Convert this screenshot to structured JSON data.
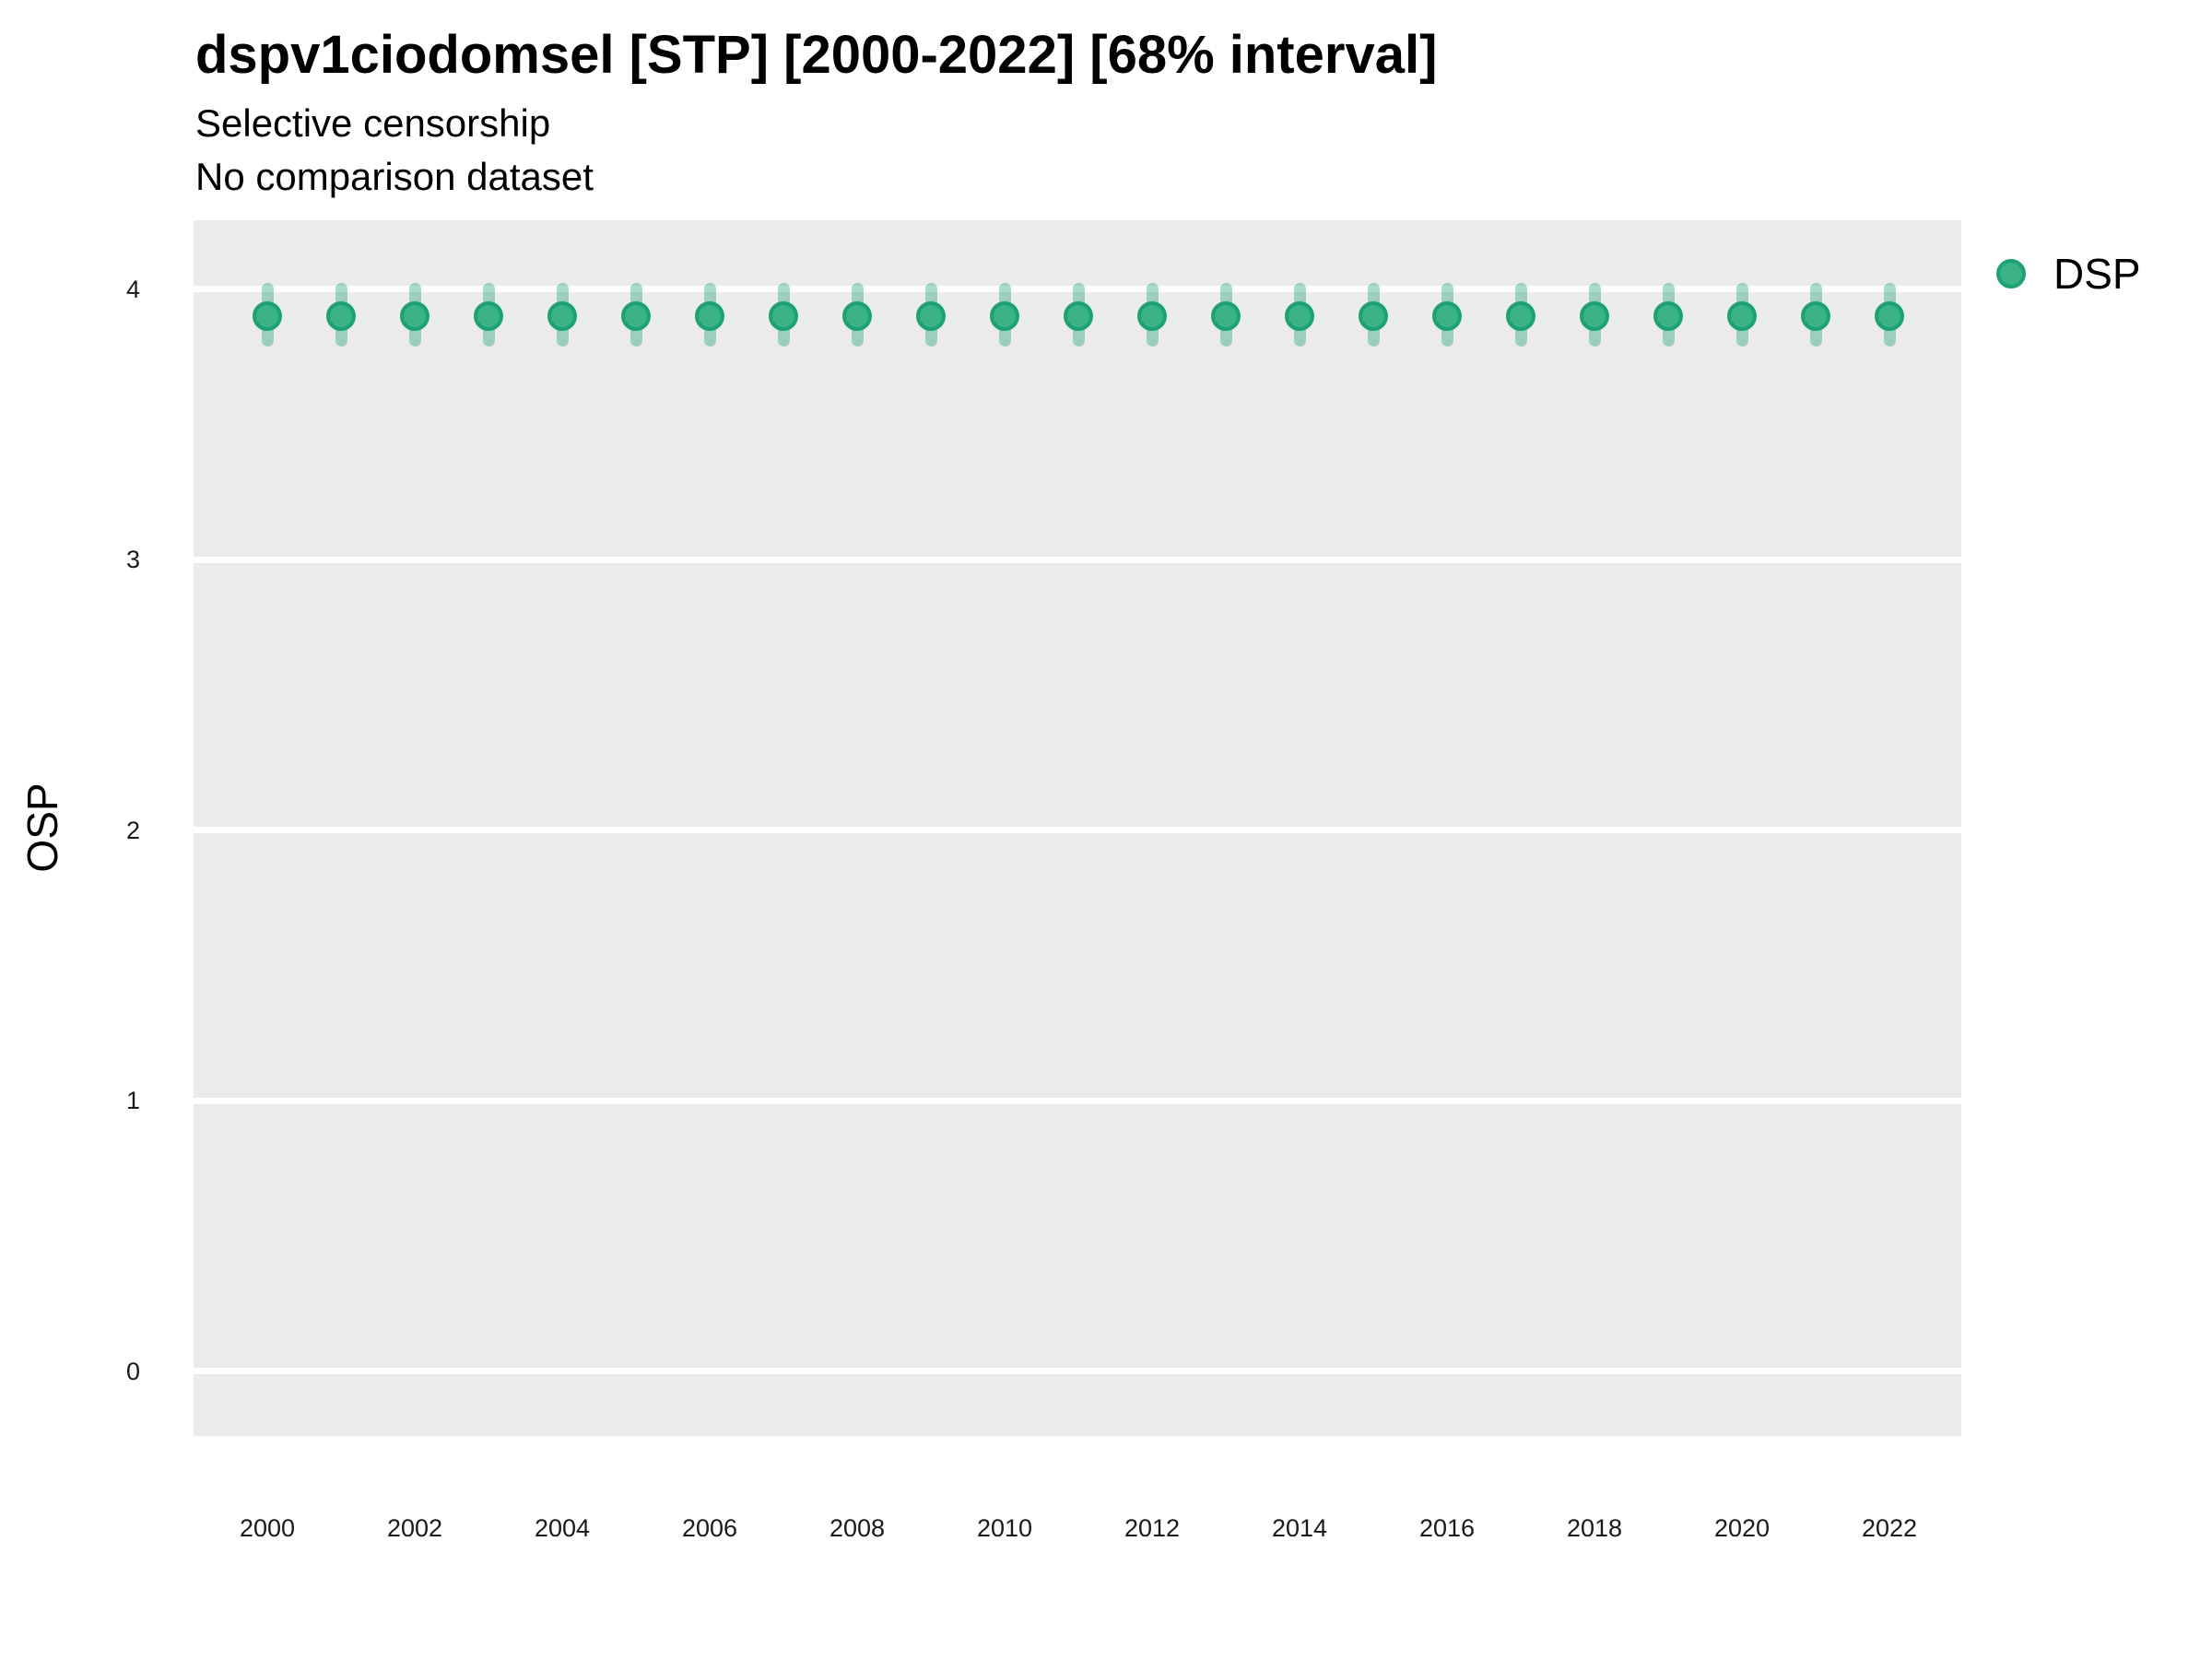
{
  "title": "dspv1ciodomsel [STP] [2000-2022] [68% interval]",
  "subtitle_line1": "Selective censorship",
  "subtitle_line2": "No comparison dataset",
  "y_axis": {
    "label": "OSP",
    "tick_values": [
      0,
      1,
      2,
      3,
      4
    ],
    "tick_labels": [
      "0",
      "1",
      "2",
      "3",
      "4"
    ]
  },
  "x_axis": {
    "tick_values": [
      2000,
      2002,
      2004,
      2006,
      2008,
      2010,
      2012,
      2014,
      2016,
      2018,
      2020,
      2022
    ],
    "tick_labels": [
      "2000",
      "2002",
      "2004",
      "2006",
      "2008",
      "2010",
      "2012",
      "2014",
      "2016",
      "2018",
      "2020",
      "2022"
    ]
  },
  "legend": {
    "label": "DSP",
    "position": "right"
  },
  "colors": {
    "panel_background": "#ebebeb",
    "gridline": "#ffffff",
    "point_fill": "#3ab285",
    "point_stroke": "#1da273",
    "interval_bar": "rgba(46, 169, 123, 0.42)",
    "text": "#000000",
    "tick_text": "#1a1a1a"
  },
  "chart_data": {
    "type": "scatter",
    "subtype": "pointrange",
    "title": "dspv1ciodomsel [STP] [2000-2022] [68% interval]",
    "subtitle": [
      "Selective censorship",
      "No comparison dataset"
    ],
    "xlabel": "",
    "ylabel": "OSP",
    "ylim": [
      -0.25,
      4.25
    ],
    "xlim": [
      1999,
      2023
    ],
    "grid": "horizontal-major-only",
    "legend_position": "right",
    "interval_label": "68% interval",
    "x": [
      2000,
      2001,
      2002,
      2003,
      2004,
      2005,
      2006,
      2007,
      2008,
      2009,
      2010,
      2011,
      2012,
      2013,
      2014,
      2015,
      2016,
      2017,
      2018,
      2019,
      2020,
      2021,
      2022
    ],
    "series": [
      {
        "name": "DSP",
        "values": [
          3.9,
          3.9,
          3.9,
          3.9,
          3.9,
          3.9,
          3.9,
          3.9,
          3.9,
          3.9,
          3.9,
          3.9,
          3.9,
          3.9,
          3.9,
          3.9,
          3.9,
          3.9,
          3.9,
          3.9,
          3.9,
          3.9,
          3.9
        ],
        "interval_low": [
          3.81,
          3.81,
          3.81,
          3.81,
          3.81,
          3.81,
          3.81,
          3.81,
          3.81,
          3.81,
          3.81,
          3.81,
          3.81,
          3.81,
          3.81,
          3.81,
          3.81,
          3.81,
          3.81,
          3.81,
          3.81,
          3.81,
          3.81
        ],
        "interval_high": [
          4.0,
          4.0,
          4.0,
          4.0,
          4.0,
          4.0,
          4.0,
          4.0,
          4.0,
          4.0,
          4.0,
          4.0,
          4.0,
          4.0,
          4.0,
          4.0,
          4.0,
          4.0,
          4.0,
          4.0,
          4.0,
          4.0,
          4.0
        ]
      }
    ]
  }
}
